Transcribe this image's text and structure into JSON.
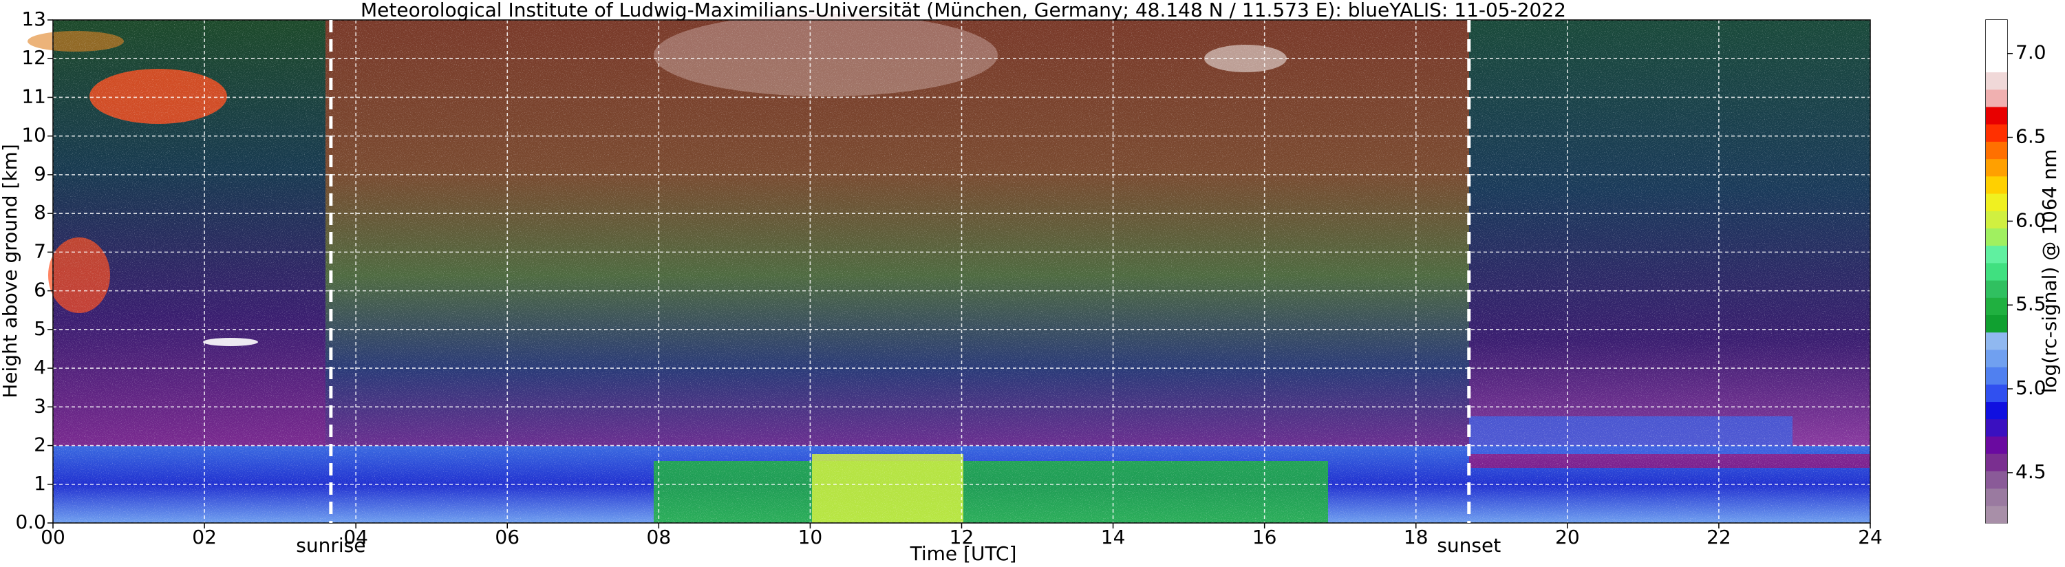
{
  "chart_data": {
    "type": "heatmap",
    "title": "Meteorological Institute of Ludwig-Maximilians-Universität (München, Germany; 48.148 N / 11.573 E):    blueYALIS: 11-05-2022",
    "x_label": "Time [UTC]",
    "y_label": "Height above ground [km]",
    "colorbar_label": "log(rc-signal) @ 1064 nm",
    "xlim": [
      0,
      24
    ],
    "xticks": [
      {
        "value": 0,
        "label": "00"
      },
      {
        "value": 2,
        "label": "02"
      },
      {
        "value": 4,
        "label": "04"
      },
      {
        "value": 6,
        "label": "06"
      },
      {
        "value": 8,
        "label": "08"
      },
      {
        "value": 10,
        "label": "10"
      },
      {
        "value": 12,
        "label": "12"
      },
      {
        "value": 14,
        "label": "14"
      },
      {
        "value": 16,
        "label": "16"
      },
      {
        "value": 18,
        "label": "18"
      },
      {
        "value": 20,
        "label": "20"
      },
      {
        "value": 22,
        "label": "22"
      },
      {
        "value": 24,
        "label": "24"
      }
    ],
    "ylim": [
      0,
      13
    ],
    "yticks": [
      {
        "value": 0,
        "label": "0.0"
      },
      1.0,
      2.0,
      3.0,
      4.0,
      5.0,
      6.0,
      7.0,
      8.0,
      9.0,
      10.0,
      11.0,
      12.0,
      13.0
    ],
    "clim": [
      4.2,
      7.2
    ],
    "cticks": [
      4.5,
      {
        "value": 5,
        "label": "5.0"
      },
      5.5,
      {
        "value": 6,
        "label": "6.0"
      },
      6.5,
      {
        "value": 7,
        "label": "7.0"
      }
    ],
    "colormap": [
      "#a88fa8",
      "#9a7aa0",
      "#8a5a98",
      "#7a2f90",
      "#6a0aa0",
      "#3a10c0",
      "#1010e0",
      "#3050f0",
      "#5080f0",
      "#70a0f0",
      "#90b8f0",
      "#10a030",
      "#20b040",
      "#30c060",
      "#40e080",
      "#60f0a0",
      "#a0f060",
      "#d0f040",
      "#f0f020",
      "#ffd000",
      "#ffa000",
      "#ff7000",
      "#ff3000",
      "#e80000",
      "#f0b0b0",
      "#f0d8d8",
      "#ffffff",
      "#ffffff",
      "#ffffff"
    ],
    "grid": true,
    "annotations": [
      {
        "text": "sunrise",
        "x": 3.67
      },
      {
        "text": "sunset",
        "x": 18.7
      }
    ]
  }
}
